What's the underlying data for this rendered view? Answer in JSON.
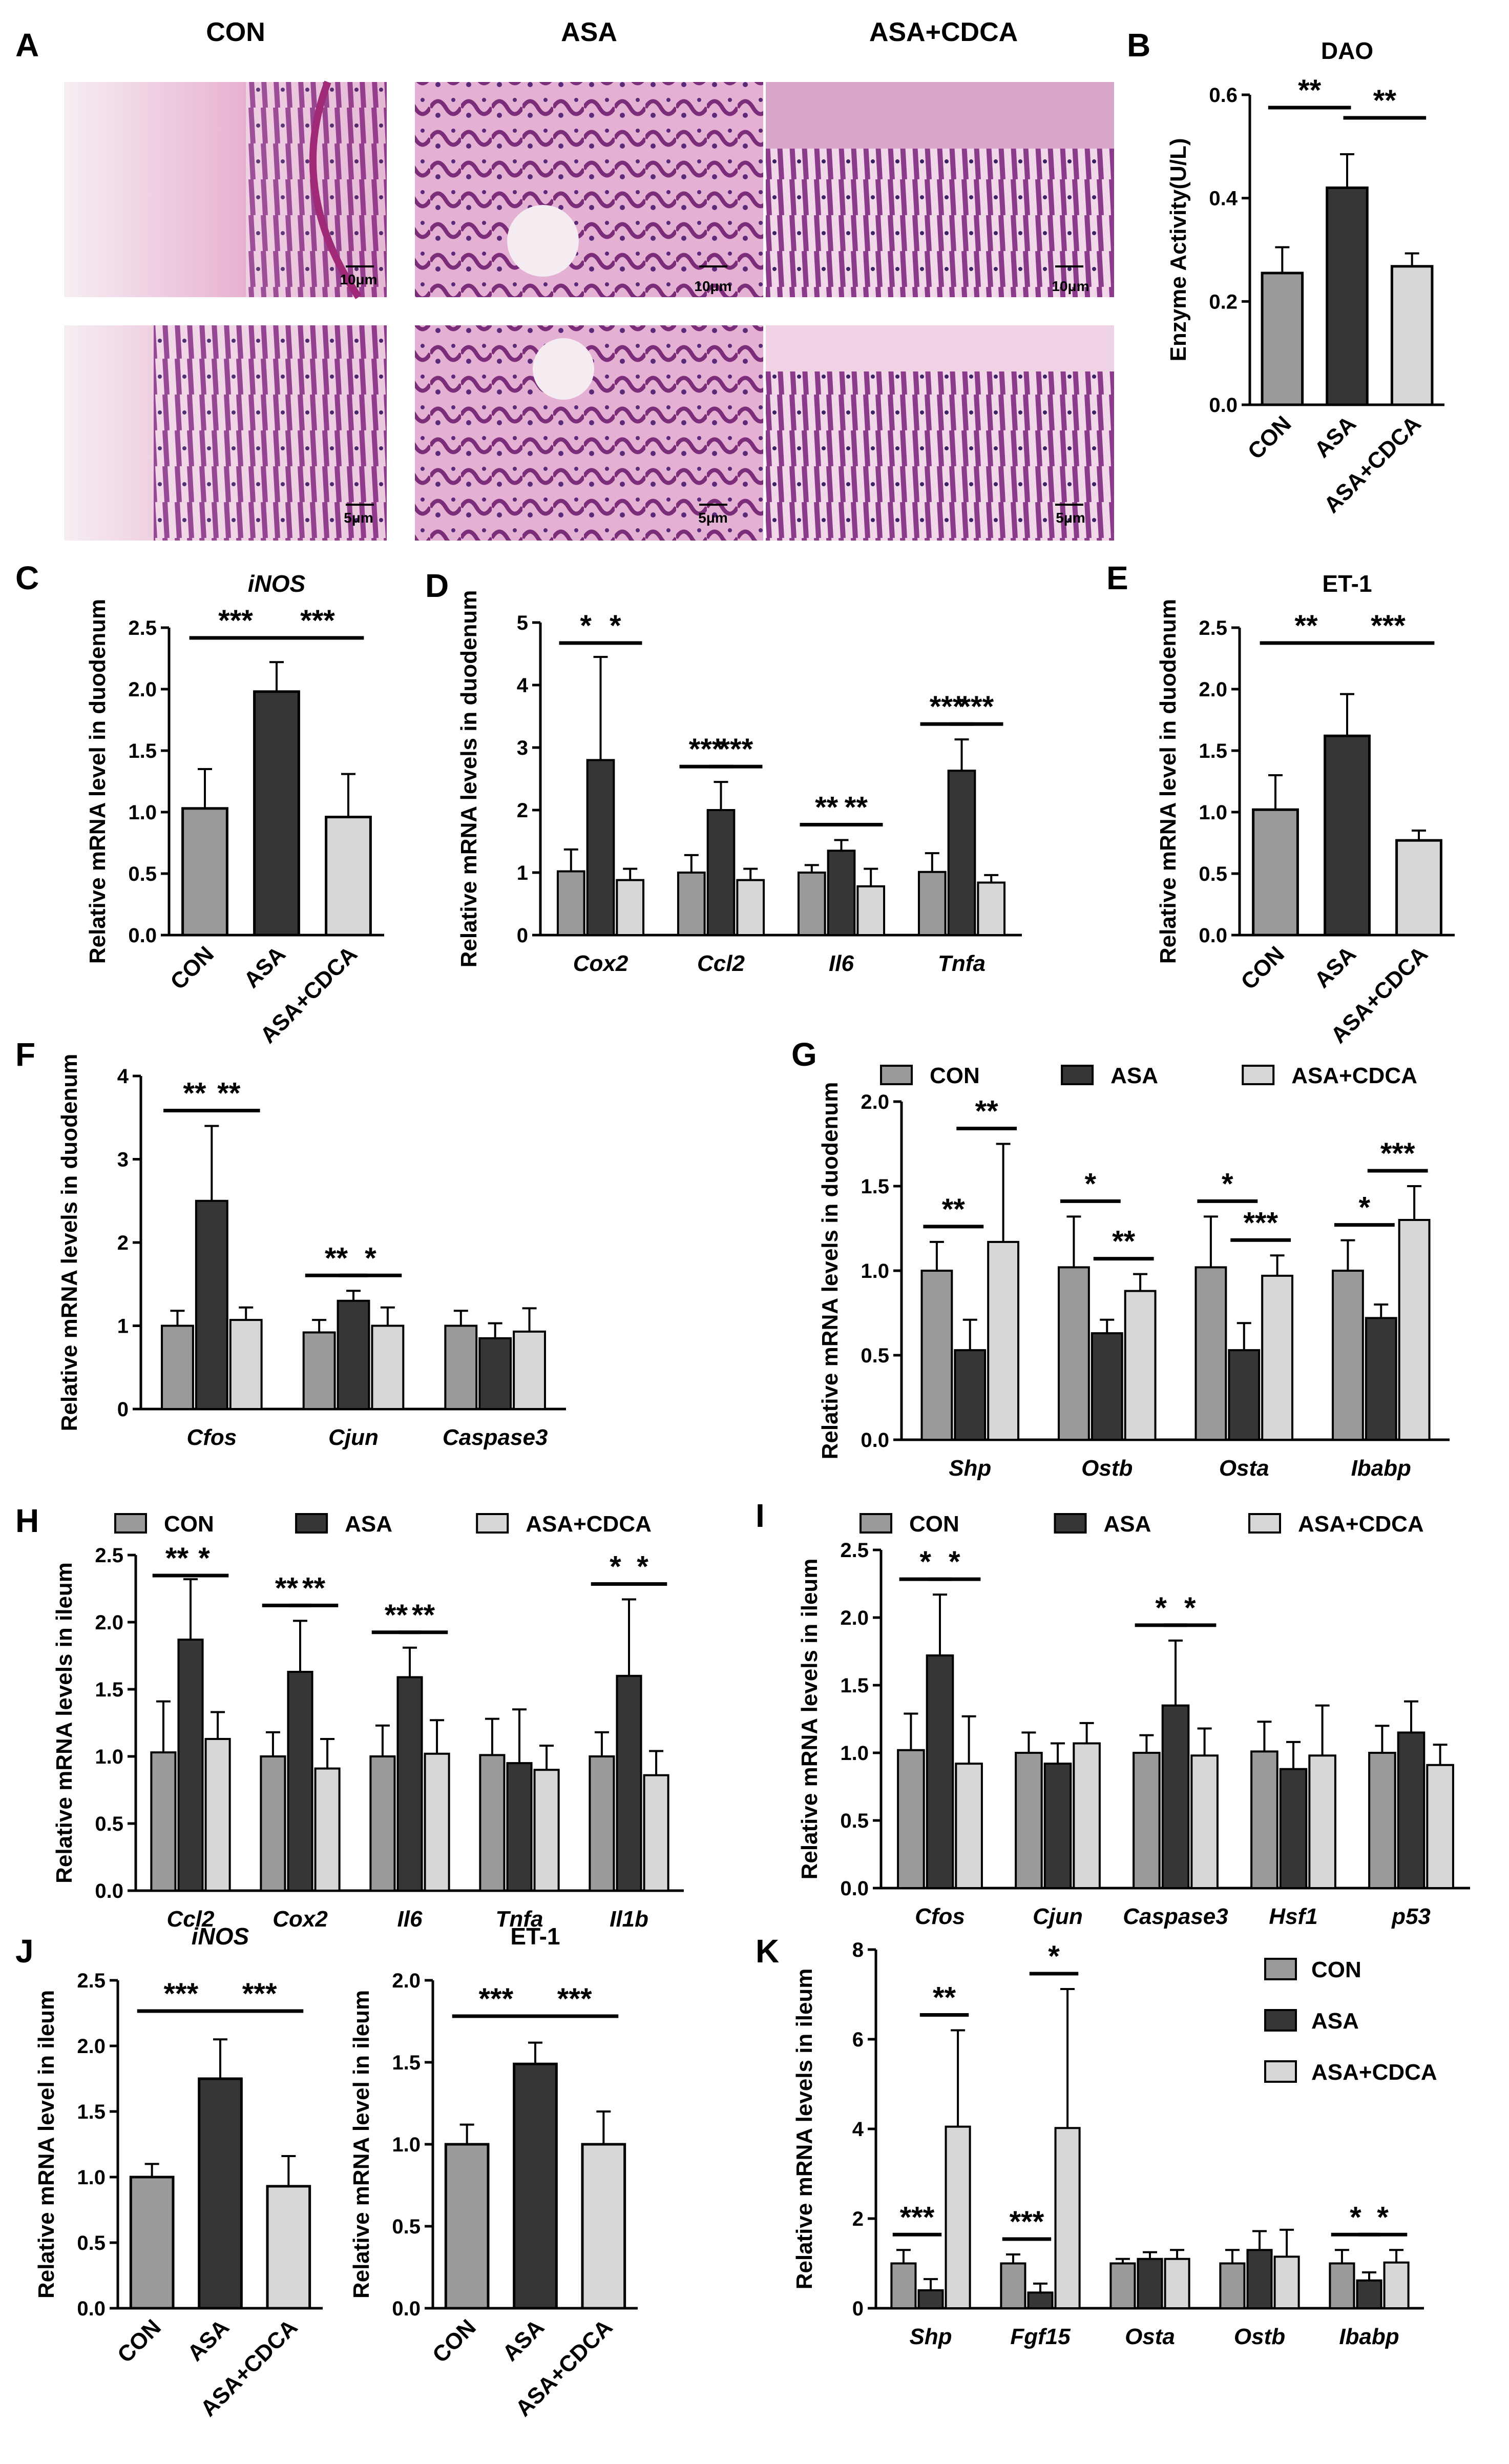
{
  "colors": {
    "CON": "#9a9a9a",
    "ASA": "#363636",
    "ASA+CDCA": "#d7d7d7"
  },
  "histology": {
    "label": "A",
    "groups": [
      "CON",
      "ASA",
      "ASA+CDCA"
    ],
    "scale_top": "10μm",
    "scale_bottom": "5μm"
  },
  "chart_data": [
    {
      "panel": "B",
      "type": "bar",
      "title": "DAO",
      "ylabel": "Enzyme Activity(U/L)",
      "ylim": [
        0,
        0.6
      ],
      "ticks": [
        "0.0",
        "0.2",
        "0.4",
        "0.6"
      ],
      "categories": [
        "CON",
        "ASA",
        "ASA+CDCA"
      ],
      "angled": true,
      "values": [
        0.255,
        0.42,
        0.268
      ],
      "errors": [
        0.05,
        0.065,
        0.025
      ],
      "sig": [
        {
          "label": "**",
          "from": 0,
          "to": 1
        },
        {
          "label": "**",
          "from": 1,
          "to": 2
        }
      ]
    },
    {
      "panel": "C",
      "type": "bar",
      "title": "iNOS",
      "title_italic": true,
      "ylabel": "Relative mRNA level in duodenum",
      "ylim": [
        0,
        2.5
      ],
      "ticks": [
        "0.0",
        "0.5",
        "1.0",
        "1.5",
        "2.0",
        "2.5"
      ],
      "categories": [
        "CON",
        "ASA",
        "ASA+CDCA"
      ],
      "angled": true,
      "values": [
        1.03,
        1.98,
        0.96
      ],
      "errors": [
        0.32,
        0.24,
        0.35
      ],
      "sig": [
        {
          "label": "***",
          "from": 0,
          "to": 1
        },
        {
          "label": "***",
          "from": 1,
          "to": 2
        }
      ]
    },
    {
      "panel": "D",
      "type": "bar",
      "ylabel": "Relative mRNA levels in duodenum",
      "ylim": [
        0,
        5
      ],
      "ticks": [
        "0",
        "1",
        "2",
        "3",
        "4",
        "5"
      ],
      "categories": [
        "Cox2",
        "Ccl2",
        "Il6",
        "Tnfa"
      ],
      "italic_categories": true,
      "series": [
        {
          "name": "CON",
          "values": [
            1.02,
            1.0,
            1.0,
            1.01
          ],
          "errors": [
            0.35,
            0.28,
            0.12,
            0.3
          ]
        },
        {
          "name": "ASA",
          "values": [
            2.8,
            2.0,
            1.35,
            2.63
          ],
          "errors": [
            1.65,
            0.45,
            0.17,
            0.5
          ]
        },
        {
          "name": "ASA+CDCA",
          "values": [
            0.88,
            0.88,
            0.78,
            0.84
          ],
          "errors": [
            0.18,
            0.18,
            0.28,
            0.12
          ]
        }
      ],
      "sig": [
        {
          "label": "*",
          "cat": 0,
          "pair": 0
        },
        {
          "label": "*",
          "cat": 0,
          "pair": 1
        },
        {
          "label": "***",
          "cat": 1,
          "pair": 0
        },
        {
          "label": "***",
          "cat": 1,
          "pair": 1
        },
        {
          "label": "**",
          "cat": 2,
          "pair": 0
        },
        {
          "label": "**",
          "cat": 2,
          "pair": 1
        },
        {
          "label": "***",
          "cat": 3,
          "pair": 0
        },
        {
          "label": "***",
          "cat": 3,
          "pair": 1
        }
      ]
    },
    {
      "panel": "E",
      "type": "bar",
      "title": "ET-1",
      "ylabel": "Relative mRNA level in duodenum",
      "ylim": [
        0,
        2.5
      ],
      "ticks": [
        "0.0",
        "0.5",
        "1.0",
        "1.5",
        "2.0",
        "2.5"
      ],
      "categories": [
        "CON",
        "ASA",
        "ASA+CDCA"
      ],
      "angled": true,
      "values": [
        1.02,
        1.62,
        0.77
      ],
      "errors": [
        0.28,
        0.34,
        0.08
      ],
      "sig": [
        {
          "label": "**",
          "from": 0,
          "to": 1
        },
        {
          "label": "***",
          "from": 1,
          "to": 2
        }
      ]
    },
    {
      "panel": "F",
      "type": "bar",
      "ylabel": "Relative mRNA levels in duodenum",
      "ylim": [
        0,
        4
      ],
      "ticks": [
        "0",
        "1",
        "2",
        "3",
        "4"
      ],
      "categories": [
        "Cfos",
        "Cjun",
        "Caspase3"
      ],
      "italic_categories": true,
      "series": [
        {
          "name": "CON",
          "values": [
            1.0,
            0.92,
            1.0
          ],
          "errors": [
            0.18,
            0.15,
            0.18
          ]
        },
        {
          "name": "ASA",
          "values": [
            2.5,
            1.3,
            0.85
          ],
          "errors": [
            0.9,
            0.12,
            0.18
          ]
        },
        {
          "name": "ASA+CDCA",
          "values": [
            1.07,
            1.0,
            0.93
          ],
          "errors": [
            0.15,
            0.22,
            0.28
          ]
        }
      ],
      "sig": [
        {
          "label": "**",
          "cat": 0,
          "pair": 0
        },
        {
          "label": "**",
          "cat": 0,
          "pair": 1
        },
        {
          "label": "**",
          "cat": 1,
          "pair": 0
        },
        {
          "label": "*",
          "cat": 1,
          "pair": 1
        }
      ]
    },
    {
      "panel": "G",
      "type": "bar",
      "ylabel": "Relative mRNA levels in duodenum",
      "ylim": [
        0,
        2
      ],
      "ticks": [
        "0.0",
        "0.5",
        "1.0",
        "1.5",
        "2.0"
      ],
      "categories": [
        "Shp",
        "Ostb",
        "Osta",
        "Ibabp"
      ],
      "italic_categories": true,
      "legend": [
        "CON",
        "ASA",
        "ASA+CDCA"
      ],
      "series": [
        {
          "name": "CON",
          "values": [
            1.0,
            1.02,
            1.02,
            1.0
          ],
          "errors": [
            0.17,
            0.3,
            0.3,
            0.18
          ]
        },
        {
          "name": "ASA",
          "values": [
            0.53,
            0.63,
            0.53,
            0.72
          ],
          "errors": [
            0.18,
            0.08,
            0.16,
            0.08
          ]
        },
        {
          "name": "ASA+CDCA",
          "values": [
            1.17,
            0.88,
            0.97,
            1.3
          ],
          "errors": [
            0.58,
            0.1,
            0.12,
            0.2
          ]
        }
      ],
      "sig": [
        {
          "label": "**",
          "cat": 0,
          "pair": 0
        },
        {
          "label": "**",
          "cat": 0,
          "pair": 1
        },
        {
          "label": "*",
          "cat": 1,
          "pair": 0
        },
        {
          "label": "**",
          "cat": 1,
          "pair": 1
        },
        {
          "label": "*",
          "cat": 2,
          "pair": 0
        },
        {
          "label": "***",
          "cat": 2,
          "pair": 1
        },
        {
          "label": "*",
          "cat": 3,
          "pair": 0
        },
        {
          "label": "***",
          "cat": 3,
          "pair": 1
        }
      ]
    },
    {
      "panel": "H",
      "type": "bar",
      "ylabel": "Relative mRNA levels in ileum",
      "ylim": [
        0,
        2.5
      ],
      "ticks": [
        "0.0",
        "0.5",
        "1.0",
        "1.5",
        "2.0",
        "2.5"
      ],
      "categories": [
        "Ccl2",
        "Cox2",
        "Il6",
        "Tnfa",
        "Il1b"
      ],
      "italic_categories": true,
      "legend": [
        "CON",
        "ASA",
        "ASA+CDCA"
      ],
      "series": [
        {
          "name": "CON",
          "values": [
            1.03,
            1.0,
            1.0,
            1.01,
            1.0
          ],
          "errors": [
            0.38,
            0.18,
            0.23,
            0.27,
            0.18
          ]
        },
        {
          "name": "ASA",
          "values": [
            1.87,
            1.63,
            1.59,
            0.95,
            1.6
          ],
          "errors": [
            0.45,
            0.38,
            0.22,
            0.4,
            0.57
          ]
        },
        {
          "name": "ASA+CDCA",
          "values": [
            1.13,
            0.91,
            1.02,
            0.9,
            0.86
          ],
          "errors": [
            0.2,
            0.22,
            0.25,
            0.18,
            0.18
          ]
        }
      ],
      "sig": [
        {
          "label": "**",
          "cat": 0,
          "pair": 0
        },
        {
          "label": "*",
          "cat": 0,
          "pair": 1
        },
        {
          "label": "**",
          "cat": 1,
          "pair": 0
        },
        {
          "label": "**",
          "cat": 1,
          "pair": 1
        },
        {
          "label": "**",
          "cat": 2,
          "pair": 0
        },
        {
          "label": "**",
          "cat": 2,
          "pair": 1
        },
        {
          "label": "*",
          "cat": 4,
          "pair": 0
        },
        {
          "label": "*",
          "cat": 4,
          "pair": 1
        }
      ]
    },
    {
      "panel": "I",
      "type": "bar",
      "ylabel": "Relative mRNA levels in ileum",
      "ylim": [
        0,
        2.5
      ],
      "ticks": [
        "0.0",
        "0.5",
        "1.0",
        "1.5",
        "2.0",
        "2.5"
      ],
      "categories": [
        "Cfos",
        "Cjun",
        "Caspase3",
        "Hsf1",
        "p53"
      ],
      "italic_categories": true,
      "legend": [
        "CON",
        "ASA",
        "ASA+CDCA"
      ],
      "series": [
        {
          "name": "CON",
          "values": [
            1.02,
            1.0,
            1.0,
            1.01,
            1.0
          ],
          "errors": [
            0.27,
            0.15,
            0.13,
            0.22,
            0.2
          ]
        },
        {
          "name": "ASA",
          "values": [
            1.72,
            0.92,
            1.35,
            0.88,
            1.15
          ],
          "errors": [
            0.45,
            0.15,
            0.48,
            0.2,
            0.23
          ]
        },
        {
          "name": "ASA+CDCA",
          "values": [
            0.92,
            1.07,
            0.98,
            0.98,
            0.91
          ],
          "errors": [
            0.35,
            0.15,
            0.2,
            0.37,
            0.15
          ]
        }
      ],
      "sig": [
        {
          "label": "*",
          "cat": 0,
          "pair": 0
        },
        {
          "label": "*",
          "cat": 0,
          "pair": 1
        },
        {
          "label": "*",
          "cat": 2,
          "pair": 0
        },
        {
          "label": "*",
          "cat": 2,
          "pair": 1
        }
      ]
    },
    {
      "panel": "J",
      "type": "bar",
      "title": "iNOS",
      "title_italic": true,
      "ylabel": "Relative mRNA level in ileum",
      "ylim": [
        0,
        2.5
      ],
      "ticks": [
        "0.0",
        "0.5",
        "1.0",
        "1.5",
        "2.0",
        "2.5"
      ],
      "categories": [
        "CON",
        "ASA",
        "ASA+CDCA"
      ],
      "angled": true,
      "values": [
        1.0,
        1.75,
        0.93
      ],
      "errors": [
        0.1,
        0.3,
        0.23
      ],
      "sig": [
        {
          "label": "***",
          "from": 0,
          "to": 1
        },
        {
          "label": "***",
          "from": 1,
          "to": 2
        }
      ]
    },
    {
      "panel": "J2",
      "type": "bar",
      "title": "ET-1",
      "ylabel": "Relative mRNA level in ileum",
      "ylim": [
        0,
        2.0
      ],
      "ticks": [
        "0.0",
        "0.5",
        "1.0",
        "1.5",
        "2.0"
      ],
      "categories": [
        "CON",
        "ASA",
        "ASA+CDCA"
      ],
      "angled": true,
      "values": [
        1.0,
        1.49,
        1.0
      ],
      "errors": [
        0.12,
        0.13,
        0.2
      ],
      "sig": [
        {
          "label": "***",
          "from": 0,
          "to": 1
        },
        {
          "label": "***",
          "from": 1,
          "to": 2
        }
      ]
    },
    {
      "panel": "K",
      "type": "bar",
      "ylabel": "Relative mRNA levels in ileum",
      "ylim": [
        0,
        8
      ],
      "ticks": [
        "0",
        "2",
        "4",
        "6",
        "8"
      ],
      "categories": [
        "Shp",
        "Fgf15",
        "Osta",
        "Ostb",
        "Ibabp"
      ],
      "italic_categories": true,
      "legend": [
        "CON",
        "ASA",
        "ASA+CDCA"
      ],
      "series": [
        {
          "name": "CON",
          "values": [
            1.0,
            1.0,
            1.0,
            1.0,
            1.0
          ],
          "errors": [
            0.3,
            0.2,
            0.1,
            0.3,
            0.3
          ]
        },
        {
          "name": "ASA",
          "values": [
            0.4,
            0.35,
            1.1,
            1.3,
            0.62
          ],
          "errors": [
            0.25,
            0.2,
            0.15,
            0.42,
            0.18
          ]
        },
        {
          "name": "ASA+CDCA",
          "values": [
            4.05,
            4.02,
            1.1,
            1.15,
            1.02
          ],
          "errors": [
            2.15,
            3.1,
            0.2,
            0.6,
            0.28
          ]
        }
      ],
      "sig": [
        {
          "label": "***",
          "cat": 0,
          "pair": 0
        },
        {
          "label": "**",
          "cat": 0,
          "pair": 1
        },
        {
          "label": "***",
          "cat": 1,
          "pair": 0
        },
        {
          "label": "*",
          "cat": 1,
          "pair": 1
        },
        {
          "label": "*",
          "cat": 4,
          "pair": 0
        },
        {
          "label": "*",
          "cat": 4,
          "pair": 1
        }
      ]
    }
  ]
}
